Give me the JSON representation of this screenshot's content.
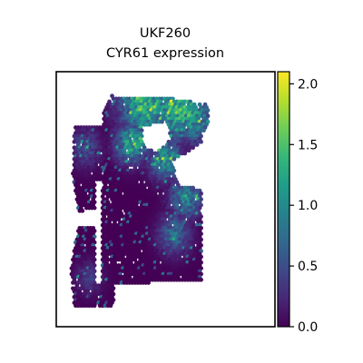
{
  "chart_data": {
    "type": "scatter",
    "subtype": "spatial-transcriptomics-hex-spots",
    "title_lines": [
      "UKF260",
      "CYR61 expression"
    ],
    "xlabel": "",
    "ylabel": "",
    "axis_ticks_visible": false,
    "grid": false,
    "colorbar": {
      "colormap": "viridis",
      "range": [
        0.0,
        2.1
      ],
      "ticks": [
        "0.0",
        "0.5",
        "1.0",
        "1.5",
        "2.0"
      ],
      "tick_values": [
        0.0,
        0.5,
        1.0,
        1.5,
        2.0
      ],
      "placement": "right"
    },
    "colormap_stops": [
      "#440154",
      "#482878",
      "#3e4989",
      "#31688e",
      "#26828e",
      "#1f9e89",
      "#35b779",
      "#6ece58",
      "#b5de2b",
      "#fde725"
    ],
    "background_spot_value": 0.0,
    "tissue_regions": [
      {
        "label": "left-strip",
        "polygon": [
          [
            0.08,
            0.62
          ],
          [
            0.27,
            0.64
          ],
          [
            0.27,
            0.98
          ],
          [
            0.06,
            0.98
          ],
          [
            0.04,
            0.82
          ]
        ]
      },
      {
        "label": "main-block",
        "polygon": [
          [
            0.25,
            0.05
          ],
          [
            0.58,
            0.06
          ],
          [
            0.78,
            0.09
          ],
          [
            0.78,
            0.18
          ],
          [
            0.74,
            0.22
          ],
          [
            0.74,
            0.86
          ],
          [
            0.2,
            0.88
          ],
          [
            0.2,
            0.3
          ],
          [
            0.22,
            0.1
          ]
        ]
      },
      {
        "label": "upper-left-patch",
        "polygon": [
          [
            0.06,
            0.18
          ],
          [
            0.22,
            0.18
          ],
          [
            0.22,
            0.54
          ],
          [
            0.08,
            0.56
          ],
          [
            0.05,
            0.4
          ]
        ]
      }
    ],
    "tissue_holes": [
      {
        "label": "upper-hole",
        "polygon": [
          [
            0.42,
            0.19
          ],
          [
            0.55,
            0.16
          ],
          [
            0.58,
            0.24
          ],
          [
            0.5,
            0.3
          ],
          [
            0.43,
            0.27
          ]
        ]
      },
      {
        "label": "right-notch",
        "polygon": [
          [
            0.58,
            0.34
          ],
          [
            0.74,
            0.26
          ],
          [
            0.74,
            0.46
          ],
          [
            0.62,
            0.44
          ]
        ]
      },
      {
        "label": "left-gap",
        "polygon": [
          [
            0.17,
            0.42
          ],
          [
            0.21,
            0.42
          ],
          [
            0.21,
            0.88
          ],
          [
            0.17,
            0.88
          ]
        ]
      }
    ],
    "expression_hotspots": [
      {
        "x": 0.45,
        "y": 0.09,
        "value": 1.4,
        "spread": 0.1
      },
      {
        "x": 0.62,
        "y": 0.1,
        "value": 1.6,
        "spread": 0.09
      },
      {
        "x": 0.7,
        "y": 0.15,
        "value": 1.2,
        "spread": 0.07
      },
      {
        "x": 0.37,
        "y": 0.26,
        "value": 1.3,
        "spread": 0.06
      },
      {
        "x": 0.55,
        "y": 0.33,
        "value": 1.2,
        "spread": 0.06
      },
      {
        "x": 0.66,
        "y": 0.5,
        "value": 1.0,
        "spread": 0.06
      },
      {
        "x": 0.6,
        "y": 0.66,
        "value": 0.8,
        "spread": 0.06
      },
      {
        "x": 0.12,
        "y": 0.28,
        "value": 0.5,
        "spread": 0.06
      },
      {
        "x": 0.14,
        "y": 0.85,
        "value": 0.4,
        "spread": 0.05
      }
    ]
  }
}
